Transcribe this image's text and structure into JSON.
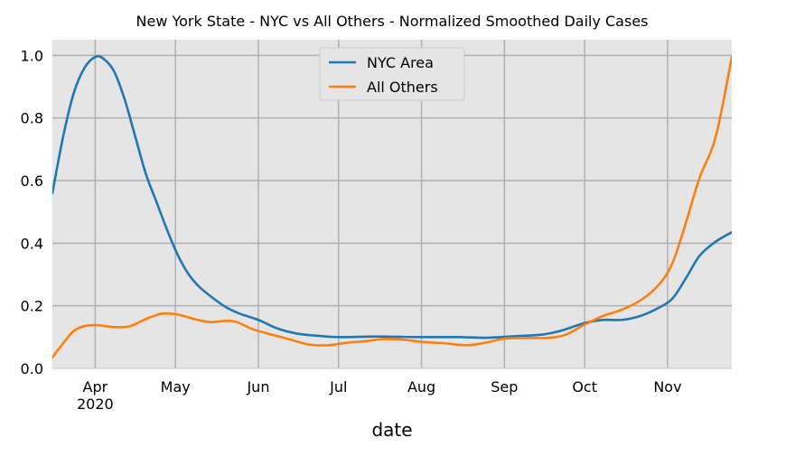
{
  "chart_data": {
    "type": "line",
    "title": "New York State - NYC vs All Others - Normalized Smoothed Daily Cases",
    "xlabel": "date",
    "ylabel": "",
    "x_range": [
      "2020-03-16",
      "2020-11-25"
    ],
    "ylim": [
      0,
      1.05
    ],
    "y_ticks": [
      "0.0",
      "0.2",
      "0.4",
      "0.6",
      "0.8",
      "1.0"
    ],
    "x_ticks": [
      {
        "date": "2020-04-01",
        "label": "Apr",
        "sublabel": "2020"
      },
      {
        "date": "2020-05-01",
        "label": "May",
        "sublabel": ""
      },
      {
        "date": "2020-06-01",
        "label": "Jun",
        "sublabel": ""
      },
      {
        "date": "2020-07-01",
        "label": "Jul",
        "sublabel": ""
      },
      {
        "date": "2020-08-01",
        "label": "Aug",
        "sublabel": ""
      },
      {
        "date": "2020-09-01",
        "label": "Sep",
        "sublabel": ""
      },
      {
        "date": "2020-10-01",
        "label": "Oct",
        "sublabel": ""
      },
      {
        "date": "2020-11-01",
        "label": "Nov",
        "sublabel": ""
      }
    ],
    "grid": true,
    "legend_position": "top-center",
    "series": [
      {
        "name": "NYC Area",
        "color": "#1f77b4",
        "points": [
          [
            "2020-03-16",
            0.56
          ],
          [
            "2020-03-20",
            0.74
          ],
          [
            "2020-03-24",
            0.88
          ],
          [
            "2020-03-28",
            0.96
          ],
          [
            "2020-04-01",
            0.995
          ],
          [
            "2020-04-04",
            0.99
          ],
          [
            "2020-04-08",
            0.95
          ],
          [
            "2020-04-12",
            0.86
          ],
          [
            "2020-04-16",
            0.74
          ],
          [
            "2020-04-20",
            0.62
          ],
          [
            "2020-04-24",
            0.53
          ],
          [
            "2020-04-28",
            0.44
          ],
          [
            "2020-05-02",
            0.36
          ],
          [
            "2020-05-06",
            0.3
          ],
          [
            "2020-05-10",
            0.26
          ],
          [
            "2020-05-15",
            0.225
          ],
          [
            "2020-05-20",
            0.195
          ],
          [
            "2020-05-25",
            0.175
          ],
          [
            "2020-06-01",
            0.155
          ],
          [
            "2020-06-08",
            0.128
          ],
          [
            "2020-06-15",
            0.112
          ],
          [
            "2020-06-22",
            0.105
          ],
          [
            "2020-07-01",
            0.1
          ],
          [
            "2020-07-15",
            0.102
          ],
          [
            "2020-08-01",
            0.1
          ],
          [
            "2020-08-15",
            0.1
          ],
          [
            "2020-08-25",
            0.098
          ],
          [
            "2020-09-05",
            0.103
          ],
          [
            "2020-09-15",
            0.108
          ],
          [
            "2020-09-22",
            0.12
          ],
          [
            "2020-10-01",
            0.145
          ],
          [
            "2020-10-08",
            0.155
          ],
          [
            "2020-10-15",
            0.155
          ],
          [
            "2020-10-22",
            0.168
          ],
          [
            "2020-10-29",
            0.195
          ],
          [
            "2020-11-03",
            0.225
          ],
          [
            "2020-11-08",
            0.29
          ],
          [
            "2020-11-13",
            0.36
          ],
          [
            "2020-11-19",
            0.405
          ],
          [
            "2020-11-25",
            0.435
          ]
        ]
      },
      {
        "name": "All Others",
        "color": "#ff7f0e",
        "points": [
          [
            "2020-03-16",
            0.035
          ],
          [
            "2020-03-20",
            0.08
          ],
          [
            "2020-03-24",
            0.12
          ],
          [
            "2020-03-28",
            0.135
          ],
          [
            "2020-04-02",
            0.138
          ],
          [
            "2020-04-08",
            0.132
          ],
          [
            "2020-04-14",
            0.135
          ],
          [
            "2020-04-20",
            0.158
          ],
          [
            "2020-04-26",
            0.175
          ],
          [
            "2020-05-02",
            0.172
          ],
          [
            "2020-05-08",
            0.158
          ],
          [
            "2020-05-14",
            0.148
          ],
          [
            "2020-05-20",
            0.152
          ],
          [
            "2020-05-24",
            0.148
          ],
          [
            "2020-05-30",
            0.125
          ],
          [
            "2020-06-06",
            0.108
          ],
          [
            "2020-06-13",
            0.092
          ],
          [
            "2020-06-20",
            0.076
          ],
          [
            "2020-06-27",
            0.074
          ],
          [
            "2020-07-04",
            0.082
          ],
          [
            "2020-07-11",
            0.087
          ],
          [
            "2020-07-18",
            0.094
          ],
          [
            "2020-07-25",
            0.092
          ],
          [
            "2020-08-01",
            0.085
          ],
          [
            "2020-08-10",
            0.08
          ],
          [
            "2020-08-18",
            0.074
          ],
          [
            "2020-08-25",
            0.082
          ],
          [
            "2020-09-01",
            0.095
          ],
          [
            "2020-09-10",
            0.097
          ],
          [
            "2020-09-18",
            0.098
          ],
          [
            "2020-09-24",
            0.108
          ],
          [
            "2020-10-01",
            0.14
          ],
          [
            "2020-10-08",
            0.168
          ],
          [
            "2020-10-15",
            0.188
          ],
          [
            "2020-10-22",
            0.218
          ],
          [
            "2020-10-29",
            0.27
          ],
          [
            "2020-11-03",
            0.34
          ],
          [
            "2020-11-08",
            0.47
          ],
          [
            "2020-11-13",
            0.61
          ],
          [
            "2020-11-19",
            0.74
          ],
          [
            "2020-11-25",
            0.995
          ]
        ]
      }
    ]
  }
}
